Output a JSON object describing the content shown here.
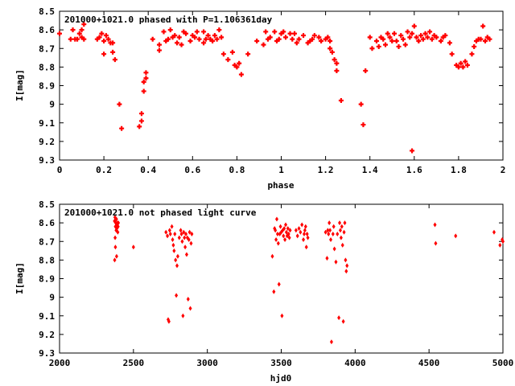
{
  "chart_data": [
    {
      "type": "scatter",
      "title": "201000+1021.0 phased with P=1.106361day",
      "xlabel": "phase",
      "ylabel": "I[mag]",
      "xlim": [
        0,
        2
      ],
      "ylim": [
        8.5,
        9.3
      ],
      "y_inverted": true,
      "grid": false,
      "color": "#ff0000",
      "marker": "plus",
      "xticks": [
        "0",
        "0.2",
        "0.4",
        "0.6",
        "0.8",
        "1",
        "1.2",
        "1.4",
        "1.6",
        "1.8",
        "2"
      ],
      "yticks": [
        "8.5",
        "8.6",
        "8.7",
        "8.8",
        "8.9",
        "9",
        "9.1",
        "9.2",
        "9.3"
      ],
      "points": [
        [
          0.0,
          8.62
        ],
        [
          0.05,
          8.65
        ],
        [
          0.06,
          8.6
        ],
        [
          0.07,
          8.65
        ],
        [
          0.08,
          8.65
        ],
        [
          0.09,
          8.62
        ],
        [
          0.1,
          8.64
        ],
        [
          0.1,
          8.6
        ],
        [
          0.11,
          8.57
        ],
        [
          0.11,
          8.65
        ],
        [
          0.17,
          8.65
        ],
        [
          0.18,
          8.64
        ],
        [
          0.19,
          8.62
        ],
        [
          0.2,
          8.66
        ],
        [
          0.2,
          8.73
        ],
        [
          0.21,
          8.63
        ],
        [
          0.22,
          8.65
        ],
        [
          0.23,
          8.67
        ],
        [
          0.24,
          8.67
        ],
        [
          0.24,
          8.72
        ],
        [
          0.25,
          8.76
        ],
        [
          0.27,
          9.0
        ],
        [
          0.28,
          9.13
        ],
        [
          0.36,
          9.12
        ],
        [
          0.37,
          9.05
        ],
        [
          0.37,
          9.09
        ],
        [
          0.38,
          8.93
        ],
        [
          0.38,
          8.88
        ],
        [
          0.39,
          8.86
        ],
        [
          0.39,
          8.83
        ],
        [
          0.42,
          8.65
        ],
        [
          0.45,
          8.68
        ],
        [
          0.45,
          8.71
        ],
        [
          0.47,
          8.61
        ],
        [
          0.48,
          8.66
        ],
        [
          0.49,
          8.65
        ],
        [
          0.5,
          8.6
        ],
        [
          0.51,
          8.64
        ],
        [
          0.52,
          8.63
        ],
        [
          0.53,
          8.67
        ],
        [
          0.54,
          8.64
        ],
        [
          0.55,
          8.68
        ],
        [
          0.56,
          8.61
        ],
        [
          0.57,
          8.62
        ],
        [
          0.59,
          8.66
        ],
        [
          0.6,
          8.63
        ],
        [
          0.61,
          8.64
        ],
        [
          0.62,
          8.61
        ],
        [
          0.63,
          8.65
        ],
        [
          0.65,
          8.61
        ],
        [
          0.65,
          8.67
        ],
        [
          0.66,
          8.65
        ],
        [
          0.67,
          8.63
        ],
        [
          0.68,
          8.65
        ],
        [
          0.69,
          8.66
        ],
        [
          0.7,
          8.63
        ],
        [
          0.71,
          8.65
        ],
        [
          0.72,
          8.6
        ],
        [
          0.73,
          8.64
        ],
        [
          0.74,
          8.73
        ],
        [
          0.76,
          8.76
        ],
        [
          0.78,
          8.72
        ],
        [
          0.79,
          8.79
        ],
        [
          0.8,
          8.8
        ],
        [
          0.81,
          8.78
        ],
        [
          0.82,
          8.84
        ],
        [
          0.85,
          8.73
        ],
        [
          0.89,
          8.66
        ],
        [
          0.92,
          8.68
        ],
        [
          0.93,
          8.61
        ],
        [
          0.94,
          8.65
        ],
        [
          0.95,
          8.64
        ],
        [
          0.97,
          8.61
        ],
        [
          0.98,
          8.66
        ],
        [
          0.99,
          8.65
        ],
        [
          1.0,
          8.62
        ],
        [
          1.01,
          8.61
        ],
        [
          1.02,
          8.64
        ],
        [
          1.04,
          8.62
        ],
        [
          1.05,
          8.65
        ],
        [
          1.06,
          8.62
        ],
        [
          1.07,
          8.67
        ],
        [
          1.08,
          8.65
        ],
        [
          1.1,
          8.63
        ],
        [
          1.12,
          8.67
        ],
        [
          1.13,
          8.66
        ],
        [
          1.14,
          8.65
        ],
        [
          1.15,
          8.63
        ],
        [
          1.17,
          8.64
        ],
        [
          1.18,
          8.66
        ],
        [
          1.2,
          8.65
        ],
        [
          1.21,
          8.64
        ],
        [
          1.22,
          8.66
        ],
        [
          1.22,
          8.7
        ],
        [
          1.23,
          8.72
        ],
        [
          1.24,
          8.76
        ],
        [
          1.25,
          8.78
        ],
        [
          1.25,
          8.82
        ],
        [
          1.27,
          8.98
        ],
        [
          1.36,
          9.0
        ],
        [
          1.37,
          9.11
        ],
        [
          1.38,
          8.82
        ],
        [
          1.4,
          8.64
        ],
        [
          1.41,
          8.7
        ],
        [
          1.43,
          8.66
        ],
        [
          1.44,
          8.69
        ],
        [
          1.45,
          8.64
        ],
        [
          1.46,
          8.65
        ],
        [
          1.47,
          8.68
        ],
        [
          1.48,
          8.62
        ],
        [
          1.49,
          8.64
        ],
        [
          1.5,
          8.66
        ],
        [
          1.51,
          8.62
        ],
        [
          1.52,
          8.66
        ],
        [
          1.53,
          8.69
        ],
        [
          1.54,
          8.63
        ],
        [
          1.55,
          8.65
        ],
        [
          1.56,
          8.68
        ],
        [
          1.57,
          8.61
        ],
        [
          1.58,
          8.64
        ],
        [
          1.59,
          8.62
        ],
        [
          1.59,
          9.25
        ],
        [
          1.6,
          8.58
        ],
        [
          1.61,
          8.64
        ],
        [
          1.62,
          8.66
        ],
        [
          1.63,
          8.63
        ],
        [
          1.64,
          8.65
        ],
        [
          1.65,
          8.62
        ],
        [
          1.66,
          8.64
        ],
        [
          1.67,
          8.61
        ],
        [
          1.68,
          8.65
        ],
        [
          1.69,
          8.63
        ],
        [
          1.7,
          8.64
        ],
        [
          1.72,
          8.66
        ],
        [
          1.73,
          8.64
        ],
        [
          1.74,
          8.63
        ],
        [
          1.76,
          8.67
        ],
        [
          1.77,
          8.73
        ],
        [
          1.79,
          8.79
        ],
        [
          1.8,
          8.8
        ],
        [
          1.81,
          8.78
        ],
        [
          1.82,
          8.8
        ],
        [
          1.83,
          8.77
        ],
        [
          1.84,
          8.79
        ],
        [
          1.86,
          8.73
        ],
        [
          1.87,
          8.69
        ],
        [
          1.88,
          8.66
        ],
        [
          1.89,
          8.65
        ],
        [
          1.9,
          8.65
        ],
        [
          1.91,
          8.58
        ],
        [
          1.92,
          8.66
        ],
        [
          1.93,
          8.64
        ],
        [
          1.94,
          8.65
        ]
      ]
    },
    {
      "type": "scatter",
      "title": "201000+1021.0 not phased light curve",
      "xlabel": "hjd0",
      "ylabel": "I[mag]",
      "xlim": [
        2000,
        5000
      ],
      "ylim": [
        8.5,
        9.3
      ],
      "y_inverted": true,
      "grid": false,
      "color": "#ff0000",
      "marker": "diamond",
      "xticks": [
        "2000",
        "2500",
        "3000",
        "3500",
        "4000",
        "4500",
        "5000"
      ],
      "yticks": [
        "8.5",
        "8.6",
        "8.7",
        "8.8",
        "8.9",
        "9",
        "9.1",
        "9.2",
        "9.3"
      ],
      "points": [
        [
          2372,
          8.59
        ],
        [
          2375,
          8.57
        ],
        [
          2378,
          8.62
        ],
        [
          2380,
          8.6
        ],
        [
          2383,
          8.64
        ],
        [
          2385,
          8.58
        ],
        [
          2388,
          8.63
        ],
        [
          2390,
          8.61
        ],
        [
          2392,
          8.6
        ],
        [
          2394,
          8.65
        ],
        [
          2396,
          8.62
        ],
        [
          2398,
          8.6
        ],
        [
          2376,
          8.68
        ],
        [
          2378,
          8.73
        ],
        [
          2373,
          8.8
        ],
        [
          2386,
          8.78
        ],
        [
          2500,
          8.73
        ],
        [
          2720,
          8.65
        ],
        [
          2730,
          8.67
        ],
        [
          2735,
          9.12
        ],
        [
          2740,
          9.13
        ],
        [
          2745,
          8.64
        ],
        [
          2750,
          8.66
        ],
        [
          2760,
          8.62
        ],
        [
          2765,
          8.69
        ],
        [
          2770,
          8.72
        ],
        [
          2775,
          8.75
        ],
        [
          2780,
          8.66
        ],
        [
          2785,
          8.8
        ],
        [
          2790,
          8.99
        ],
        [
          2795,
          8.83
        ],
        [
          2800,
          8.78
        ],
        [
          2810,
          8.68
        ],
        [
          2820,
          8.64
        ],
        [
          2825,
          8.66
        ],
        [
          2830,
          8.7
        ],
        [
          2835,
          9.1
        ],
        [
          2840,
          8.65
        ],
        [
          2845,
          8.68
        ],
        [
          2850,
          8.73
        ],
        [
          2855,
          8.66
        ],
        [
          2860,
          8.77
        ],
        [
          2865,
          8.68
        ],
        [
          2870,
          9.01
        ],
        [
          2875,
          8.69
        ],
        [
          2880,
          8.65
        ],
        [
          2885,
          9.06
        ],
        [
          2890,
          8.71
        ],
        [
          2895,
          8.66
        ],
        [
          3440,
          8.78
        ],
        [
          3450,
          8.97
        ],
        [
          3455,
          8.63
        ],
        [
          3460,
          8.64
        ],
        [
          3465,
          8.69
        ],
        [
          3470,
          8.58
        ],
        [
          3475,
          8.66
        ],
        [
          3480,
          8.71
        ],
        [
          3485,
          8.93
        ],
        [
          3490,
          8.66
        ],
        [
          3495,
          8.62
        ],
        [
          3500,
          8.65
        ],
        [
          3505,
          9.1
        ],
        [
          3510,
          8.64
        ],
        [
          3515,
          8.67
        ],
        [
          3520,
          8.63
        ],
        [
          3525,
          8.69
        ],
        [
          3530,
          8.61
        ],
        [
          3535,
          8.65
        ],
        [
          3540,
          8.67
        ],
        [
          3545,
          8.63
        ],
        [
          3550,
          8.66
        ],
        [
          3555,
          8.68
        ],
        [
          3560,
          8.64
        ],
        [
          3600,
          8.64
        ],
        [
          3610,
          8.67
        ],
        [
          3620,
          8.63
        ],
        [
          3630,
          8.65
        ],
        [
          3640,
          8.61
        ],
        [
          3650,
          8.69
        ],
        [
          3655,
          8.66
        ],
        [
          3660,
          8.64
        ],
        [
          3665,
          8.62
        ],
        [
          3670,
          8.73
        ],
        [
          3675,
          8.66
        ],
        [
          3680,
          8.68
        ],
        [
          3800,
          8.65
        ],
        [
          3810,
          8.79
        ],
        [
          3815,
          8.64
        ],
        [
          3820,
          8.66
        ],
        [
          3825,
          8.6
        ],
        [
          3830,
          8.64
        ],
        [
          3835,
          8.69
        ],
        [
          3840,
          9.24
        ],
        [
          3850,
          8.66
        ],
        [
          3855,
          8.62
        ],
        [
          3860,
          8.74
        ],
        [
          3870,
          8.81
        ],
        [
          3880,
          8.66
        ],
        [
          3890,
          9.11
        ],
        [
          3895,
          8.6
        ],
        [
          3900,
          8.64
        ],
        [
          3905,
          8.68
        ],
        [
          3910,
          8.62
        ],
        [
          3915,
          8.72
        ],
        [
          3920,
          9.13
        ],
        [
          3925,
          8.65
        ],
        [
          3930,
          8.6
        ],
        [
          3935,
          8.8
        ],
        [
          3940,
          8.86
        ],
        [
          3945,
          8.83
        ],
        [
          4540,
          8.61
        ],
        [
          4545,
          8.71
        ],
        [
          4680,
          8.67
        ],
        [
          4940,
          8.65
        ],
        [
          4980,
          8.72
        ],
        [
          4995,
          8.69
        ],
        [
          5000,
          8.7
        ]
      ]
    }
  ]
}
